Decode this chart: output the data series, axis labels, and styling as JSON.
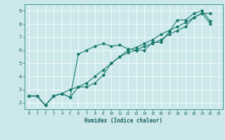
{
  "title": "",
  "xlabel": "Humidex (Indice chaleur)",
  "xlim": [
    -0.5,
    23.5
  ],
  "ylim": [
    1.5,
    9.5
  ],
  "xticks": [
    0,
    1,
    2,
    3,
    4,
    5,
    6,
    7,
    8,
    9,
    10,
    11,
    12,
    13,
    14,
    15,
    16,
    17,
    18,
    19,
    20,
    21,
    22,
    23
  ],
  "yticks": [
    2,
    3,
    4,
    5,
    6,
    7,
    8,
    9
  ],
  "bg_color": "#cce8eb",
  "line_color": "#1a7a6e",
  "grid_color": "#ffffff",
  "line1_x": [
    0,
    1,
    2,
    3,
    4,
    5,
    6,
    7,
    8,
    9,
    10,
    11,
    12,
    13,
    14,
    15,
    16,
    17,
    18,
    19,
    20,
    21,
    22
  ],
  "line1_y": [
    2.5,
    2.5,
    1.8,
    2.5,
    2.7,
    2.4,
    5.7,
    6.0,
    6.3,
    6.5,
    6.3,
    6.4,
    6.1,
    6.0,
    6.0,
    6.6,
    6.6,
    7.4,
    8.3,
    8.3,
    8.8,
    9.0,
    8.2
  ],
  "line2_x": [
    0,
    1,
    2,
    3,
    4,
    5,
    6,
    7,
    8,
    9,
    10,
    11,
    12,
    13,
    14,
    15,
    16,
    17,
    18,
    19,
    20,
    21,
    22
  ],
  "line2_y": [
    2.5,
    2.5,
    1.8,
    2.5,
    2.7,
    2.4,
    3.2,
    3.2,
    3.5,
    4.1,
    5.0,
    5.5,
    5.8,
    6.0,
    6.3,
    6.5,
    6.8,
    7.2,
    7.5,
    7.8,
    8.5,
    8.8,
    8.8
  ],
  "line3_x": [
    0,
    1,
    2,
    3,
    4,
    5,
    6,
    7,
    8,
    9,
    10,
    11,
    12,
    13,
    14,
    15,
    16,
    17,
    18,
    19,
    20,
    21,
    22
  ],
  "line3_y": [
    2.5,
    2.5,
    1.8,
    2.5,
    2.7,
    3.0,
    3.2,
    3.5,
    4.0,
    4.5,
    5.0,
    5.5,
    6.0,
    6.2,
    6.5,
    6.8,
    7.2,
    7.5,
    7.8,
    8.1,
    8.5,
    8.8,
    8.0
  ]
}
